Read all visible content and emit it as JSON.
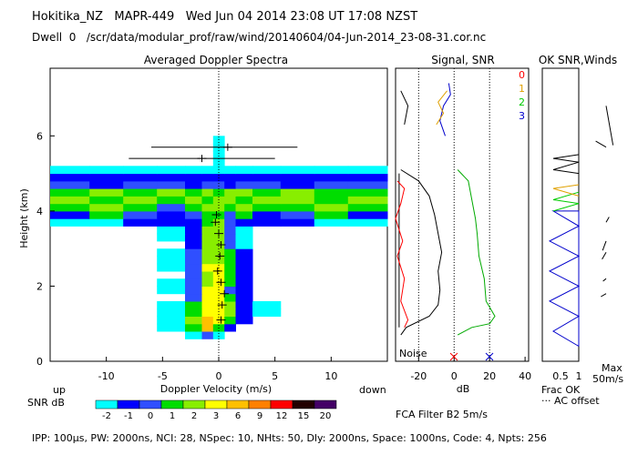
{
  "header": {
    "title": "Hokitika_NZ   MAPR-449   Wed Jun 04 2014 23:08 UT 17:08 NZST",
    "subtitle": "Dwell  0   /scr/data/modular_prof/raw/wind/20140604/04-Jun-2014_23-08-31.cor.nc"
  },
  "footer": {
    "params": "IPP: 100μs,  PW: 2000ns,  NCI:  28,  NSpec: 10, NHts: 50,  Dly: 2000ns,  Space: 1000ns,  Code: 4,  Npts: 256"
  },
  "panels": {
    "spectra": {
      "title": "Averaged Doppler Spectra",
      "ylabel": "Height (km)",
      "xlabel": "Doppler Velocity (m/s)",
      "up_label": "up",
      "down_label": "down",
      "x_ticks": [
        "-10",
        "-5",
        "0",
        "5",
        "10"
      ],
      "y_ticks": [
        "0",
        "2",
        "4",
        "6"
      ]
    },
    "snr": {
      "title": "Signal, SNR",
      "xlabel": "dB",
      "x_ticks": [
        "-20",
        "0",
        "20",
        "40"
      ],
      "noise_label": "Noise",
      "filter_label": "FCA Filter B2  5m/s"
    },
    "winds": {
      "title": "OK SNR,Winds",
      "legend_digits": [
        "0",
        "1",
        "2",
        "3"
      ],
      "legend_colors": [
        "#ff0000",
        "#e0a000",
        "#00cc00",
        "#0000cc"
      ],
      "x_ticks": [
        "0.5",
        "1"
      ],
      "frac_label": "Frac OK",
      "ac_label": "··· AC offset",
      "max_label": "Max",
      "max_value": "50m/s"
    }
  },
  "colorbar": {
    "label": "SNR dB",
    "ticks": [
      "-2",
      "-1",
      "0",
      "1",
      "2",
      "3",
      "6",
      "9",
      "12",
      "15",
      "20"
    ],
    "colors": [
      "#00ffff",
      "#0000ff",
      "#2f4fff",
      "#00dd00",
      "#88ee00",
      "#ffff00",
      "#ffc000",
      "#ff8000",
      "#ff0000",
      "#220000",
      "#440066"
    ]
  },
  "chart_data": [
    {
      "type": "heatmap",
      "title": "Averaged Doppler Spectra",
      "xlabel": "Doppler Velocity (m/s)",
      "ylabel": "Height (km)",
      "xlim": [
        -15,
        15
      ],
      "ylim": [
        0,
        7.8
      ],
      "velocity_bins": [
        -13,
        -10,
        -7,
        -4,
        -2,
        -1,
        0,
        1,
        2,
        4,
        7,
        10,
        13
      ],
      "heights_km": [
        0.7,
        0.9,
        1.1,
        1.3,
        1.5,
        1.7,
        1.9,
        2.1,
        2.3,
        2.5,
        2.7,
        2.9,
        3.1,
        3.3,
        3.5,
        3.7,
        3.9,
        4.1,
        4.3,
        4.5,
        4.7,
        4.9,
        5.1,
        5.3,
        5.5,
        5.7,
        5.9
      ],
      "snr_db_rows": [
        [
          -9,
          -9,
          -9,
          -9,
          -2,
          0,
          -2,
          -9,
          -9,
          -9,
          -9,
          -9,
          -9
        ],
        [
          -9,
          -9,
          -9,
          -2,
          1,
          6,
          1,
          -1,
          -9,
          -9,
          -9,
          -9,
          -9
        ],
        [
          -9,
          -9,
          -9,
          -2,
          2,
          6,
          3,
          1,
          -1,
          -9,
          -9,
          -9,
          -9
        ],
        [
          -9,
          -9,
          -9,
          -2,
          1,
          3,
          3,
          2,
          -1,
          -2,
          -9,
          -9,
          -9
        ],
        [
          -9,
          -9,
          -9,
          -2,
          1,
          3,
          3,
          2,
          -1,
          -2,
          -9,
          -9,
          -9
        ],
        [
          -9,
          -9,
          -9,
          -9,
          0,
          3,
          3,
          1,
          -1,
          -9,
          -9,
          -9,
          -9
        ],
        [
          -9,
          -9,
          -9,
          -2,
          0,
          3,
          3,
          0,
          -1,
          -9,
          -9,
          -9,
          -9
        ],
        [
          -9,
          -9,
          -9,
          -2,
          0,
          2,
          3,
          1,
          -1,
          -9,
          -9,
          -9,
          -9
        ],
        [
          -9,
          -9,
          -9,
          -9,
          0,
          2,
          3,
          1,
          -1,
          -9,
          -9,
          -9,
          -9
        ],
        [
          -9,
          -9,
          -9,
          -2,
          0,
          3,
          3,
          1,
          -1,
          -9,
          -9,
          -9,
          -9
        ],
        [
          -9,
          -9,
          -9,
          -2,
          0,
          2,
          2,
          1,
          -1,
          -9,
          -9,
          -9,
          -9
        ],
        [
          -9,
          -9,
          -9,
          -2,
          0,
          2,
          2,
          1,
          -1,
          -9,
          -9,
          -9,
          -9
        ],
        [
          -9,
          -9,
          -9,
          -9,
          -1,
          2,
          2,
          0,
          -2,
          -9,
          -9,
          -9,
          -9
        ],
        [
          -9,
          -9,
          -9,
          -2,
          -1,
          2,
          2,
          0,
          -2,
          -9,
          -9,
          -9,
          -9
        ],
        [
          -9,
          -9,
          -9,
          -2,
          -1,
          2,
          2,
          0,
          -2,
          -9,
          -9,
          -9,
          -9
        ],
        [
          -2,
          -2,
          -1,
          -1,
          -1,
          1,
          2,
          0,
          -1,
          -1,
          -1,
          -2,
          -2
        ],
        [
          -1,
          1,
          0,
          -1,
          0,
          1,
          1,
          0,
          1,
          -1,
          0,
          1,
          -1
        ],
        [
          1,
          2,
          1,
          0,
          1,
          2,
          2,
          1,
          2,
          1,
          1,
          2,
          1
        ],
        [
          2,
          1,
          2,
          1,
          2,
          1,
          2,
          2,
          1,
          2,
          2,
          1,
          2
        ],
        [
          1,
          2,
          1,
          2,
          1,
          2,
          1,
          2,
          2,
          1,
          2,
          1,
          1
        ],
        [
          0,
          -1,
          0,
          0,
          -1,
          0,
          0,
          -1,
          0,
          0,
          -1,
          0,
          0
        ],
        [
          -1,
          -1,
          -1,
          -1,
          -1,
          -1,
          -1,
          -1,
          -1,
          -1,
          -1,
          -1,
          -1
        ],
        [
          -2,
          -2,
          -2,
          -2,
          -2,
          -2,
          -2,
          -2,
          -2,
          -2,
          -2,
          -2,
          -2
        ],
        [
          -9,
          -9,
          -9,
          -9,
          -9,
          -9,
          -2,
          -9,
          -9,
          -9,
          -9,
          -9,
          -9
        ],
        [
          -9,
          -9,
          -9,
          -9,
          -9,
          -9,
          -2,
          -9,
          -9,
          -9,
          -9,
          -9,
          -9
        ],
        [
          -9,
          -9,
          -9,
          -9,
          -9,
          -9,
          -2,
          -9,
          -9,
          -9,
          -9,
          -9,
          -9
        ],
        [
          -9,
          -9,
          -9,
          -9,
          -9,
          -9,
          -2,
          -9,
          -9,
          -9,
          -9,
          -9,
          -9
        ]
      ],
      "velocity_markers": [
        {
          "height": 1.1,
          "velocity": 0.2
        },
        {
          "height": 1.5,
          "velocity": 0.3
        },
        {
          "height": 1.8,
          "velocity": 0.5
        },
        {
          "height": 2.1,
          "velocity": 0.2
        },
        {
          "height": 2.4,
          "velocity": -0.1
        },
        {
          "height": 2.8,
          "velocity": 0.1
        },
        {
          "height": 3.1,
          "velocity": 0.2
        },
        {
          "height": 3.4,
          "velocity": 0.0
        },
        {
          "height": 3.7,
          "velocity": -0.3
        },
        {
          "height": 3.9,
          "velocity": -0.2
        },
        {
          "height": 5.4,
          "velocity": -1.5
        },
        {
          "height": 5.7,
          "velocity": 0.8
        }
      ],
      "marker_errorbars": [
        {
          "height": 5.4,
          "from": -8,
          "to": 5
        },
        {
          "height": 5.7,
          "from": -6,
          "to": 7
        }
      ]
    },
    {
      "type": "line",
      "title": "Signal, SNR",
      "xlabel": "dB",
      "xlim": [
        -33,
        42
      ],
      "series": [
        {
          "name": "signal",
          "color": "#000000",
          "points": [
            [
              -30,
              0.7
            ],
            [
              -27,
              0.9
            ],
            [
              -14,
              1.2
            ],
            [
              -9,
              1.5
            ],
            [
              -8,
              1.9
            ],
            [
              -9,
              2.4
            ],
            [
              -7,
              2.9
            ],
            [
              -9,
              3.4
            ],
            [
              -11,
              3.9
            ],
            [
              -14,
              4.4
            ],
            [
              -20,
              4.8
            ],
            [
              -30,
              5.1
            ]
          ]
        },
        {
          "name": "snr",
          "color": "#00aa00",
          "points": [
            [
              2,
              0.7
            ],
            [
              10,
              0.9
            ],
            [
              20,
              1.0
            ],
            [
              23,
              1.2
            ],
            [
              18,
              1.6
            ],
            [
              17,
              2.2
            ],
            [
              14,
              2.8
            ],
            [
              13,
              3.4
            ],
            [
              12,
              3.8
            ],
            [
              10,
              4.3
            ],
            [
              8,
              4.8
            ],
            [
              2,
              5.1
            ]
          ]
        },
        {
          "name": "noise",
          "color": "#000000",
          "points": [
            [
              -31,
              0.9
            ],
            [
              -31,
              5.0
            ]
          ]
        },
        {
          "name": "noise_upper",
          "color": "#000000",
          "points": [
            [
              -28,
              6.3
            ],
            [
              -26,
              6.8
            ],
            [
              -30,
              7.2
            ]
          ]
        },
        {
          "name": "red_profile",
          "color": "#ff0000",
          "points": [
            [
              -28,
              0.9
            ],
            [
              -26,
              1.1
            ],
            [
              -30,
              1.6
            ],
            [
              -28,
              2.2
            ],
            [
              -32,
              2.8
            ],
            [
              -29,
              3.2
            ],
            [
              -33,
              3.8
            ],
            [
              -30,
              4.2
            ],
            [
              -28,
              4.6
            ],
            [
              -32,
              4.8
            ]
          ]
        },
        {
          "name": "upper_traces",
          "color": "#0000cc",
          "points": [
            [
              -5,
              6.0
            ],
            [
              -8,
              6.4
            ],
            [
              -6,
              6.8
            ],
            [
              -2,
              7.1
            ],
            [
              -3,
              7.4
            ]
          ]
        },
        {
          "name": "upper_traces_gold",
          "color": "#e0a000",
          "points": [
            [
              -10,
              6.3
            ],
            [
              -6,
              6.6
            ],
            [
              -9,
              6.9
            ],
            [
              -4,
              7.2
            ]
          ]
        }
      ],
      "vlines": [
        -20,
        0,
        20
      ]
    },
    {
      "type": "line",
      "title": "OK SNR,Winds",
      "xlim": [
        0,
        1
      ],
      "series": [
        {
          "name": "frac_ok",
          "color": "#0000cc",
          "points": [
            [
              1,
              0.4
            ],
            [
              1,
              4.0
            ],
            [
              0.3,
              4.0
            ],
            [
              1,
              3.6
            ],
            [
              0.2,
              3.2
            ],
            [
              1,
              2.8
            ],
            [
              0.2,
              2.4
            ],
            [
              1,
              2.0
            ],
            [
              0.2,
              1.6
            ],
            [
              1,
              1.2
            ],
            [
              0.3,
              0.8
            ],
            [
              1,
              0.4
            ]
          ]
        },
        {
          "name": "winds_green",
          "color": "#00cc00",
          "points": [
            [
              1,
              4.5
            ],
            [
              0.3,
              4.3
            ],
            [
              1,
              4.2
            ],
            [
              0.3,
              4.0
            ]
          ]
        },
        {
          "name": "winds_gold",
          "color": "#e0a000",
          "points": [
            [
              1,
              4.7
            ],
            [
              0.3,
              4.6
            ],
            [
              1,
              4.4
            ]
          ]
        },
        {
          "name": "winds_black_upper",
          "color": "#000000",
          "points": [
            [
              1,
              5.5
            ],
            [
              0.3,
              5.4
            ],
            [
              1,
              5.3
            ],
            [
              0.3,
              5.1
            ],
            [
              1,
              5.0
            ]
          ]
        }
      ],
      "wind_barbs": [
        {
          "height": 6.8,
          "dir_deg": 170,
          "speed": 40
        },
        {
          "height": 5.7,
          "dir_deg": 300,
          "speed": 12
        },
        {
          "height": 3.7,
          "dir_deg": 30,
          "speed": 6
        },
        {
          "height": 3.2,
          "dir_deg": 200,
          "speed": 10
        },
        {
          "height": 2.9,
          "dir_deg": 210,
          "speed": 8
        },
        {
          "height": 2.2,
          "dir_deg": 230,
          "speed": 4
        },
        {
          "height": 1.8,
          "dir_deg": 240,
          "speed": 6
        }
      ]
    }
  ]
}
